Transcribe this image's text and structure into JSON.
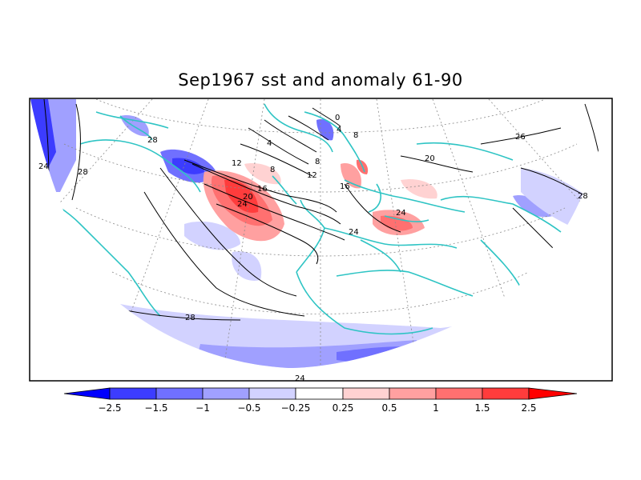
{
  "title": "Sep1967 sst and anomaly 61-90",
  "colors": {
    "coast": "#2ec4c4",
    "grid": "#8a8a8a",
    "contour": "#000000",
    "anomaly_scale": [
      "#0000ff",
      "#3c3cff",
      "#7070ff",
      "#a0a0ff",
      "#d2d2ff",
      "#ffffff",
      "#ffd2d2",
      "#ffa0a0",
      "#ff7070",
      "#ff3c3c",
      "#ff0000"
    ]
  },
  "contour_labels": [
    "0",
    "4",
    "4",
    "8",
    "8",
    "8",
    "12",
    "12",
    "16",
    "16",
    "20",
    "20",
    "24",
    "24",
    "24",
    "24",
    "24",
    "26",
    "28",
    "28",
    "28",
    "28"
  ],
  "colorbar": {
    "labels": [
      "−2.5",
      "−1.5",
      "−1",
      "−0.5",
      "−0.25",
      "0.25",
      "0.5",
      "1",
      "1.5",
      "2.5"
    ]
  }
}
